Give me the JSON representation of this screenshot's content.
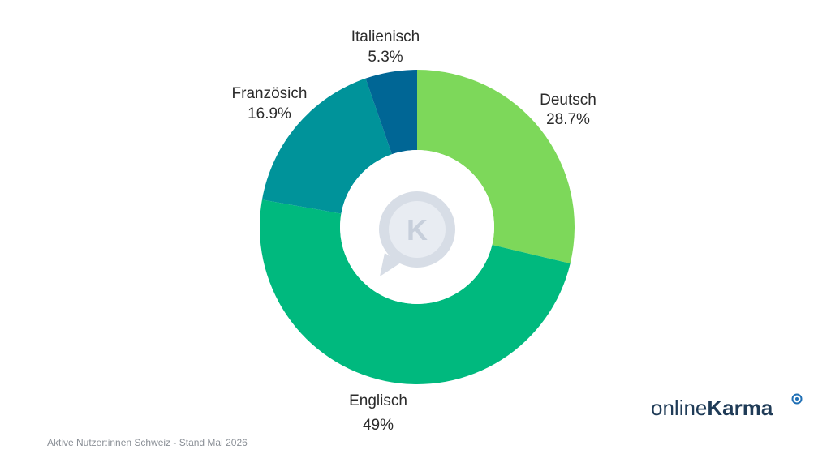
{
  "chart_data": {
    "type": "pie",
    "donut": true,
    "slices": [
      {
        "label": "Deutsch",
        "value": 28.7,
        "value_label": "28.7%",
        "color": "#7dd85a"
      },
      {
        "label": "Englisch",
        "value": 49,
        "value_label": "49%",
        "color": "#00b97e"
      },
      {
        "label": "Französich",
        "value": 16.9,
        "value_label": "16.9%",
        "color": "#00939a"
      },
      {
        "label": "Italienisch",
        "value": 5.3,
        "value_label": "5.3%",
        "color": "#006695"
      }
    ],
    "center_icon": "k-chat-bubble-icon"
  },
  "footer": {
    "note": "Aktive Nutzer:innen Schweiz - Stand Mai 2026"
  },
  "brand": {
    "light": "online",
    "strong": "Karma",
    "mark_icon": "target-icon"
  }
}
